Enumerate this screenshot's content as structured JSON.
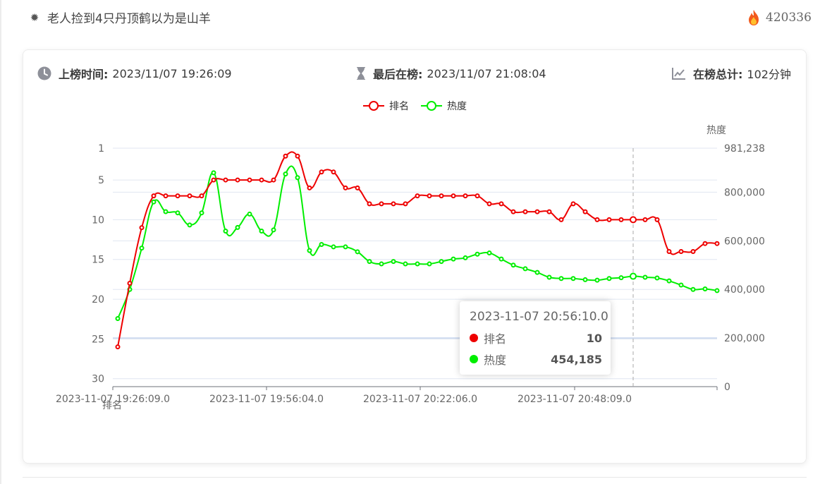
{
  "topic": {
    "title": "老人捡到4只丹顶鹤以为是山羊",
    "heat": "420336",
    "topic_icon": "gear-icon",
    "heat_icon": "fire-icon"
  },
  "stats": {
    "first_label": "上榜时间:",
    "first_value": "2023/11/07 19:26:09",
    "last_label": "最后在榜:",
    "last_value": "2023/11/07 21:08:04",
    "total_label": "在榜总计:",
    "total_value": "102分钟"
  },
  "colors": {
    "rank": "#ee0000",
    "heat": "#00ee00"
  },
  "tooltip": {
    "title": "2023-11-07 20:56:10.0",
    "rows": [
      {
        "name": "排名",
        "value": "10"
      },
      {
        "name": "热度",
        "value": "454,185"
      }
    ]
  },
  "chart_data": {
    "type": "line",
    "legend": [
      "排名",
      "热度"
    ],
    "legend_position": "top-center",
    "x_tick_labels": [
      "2023-11-07 19:26:09.0",
      "2023-11-07 19:56:04.0",
      "2023-11-07 20:22:06.0",
      "2023-11-07 20:48:09.0"
    ],
    "left_axis": {
      "name": "排名",
      "inverse": true,
      "range": [
        1,
        31
      ],
      "ticks": [
        "1",
        "5",
        "10",
        "15",
        "20",
        "25",
        "30"
      ]
    },
    "right_axis": {
      "name": "热度",
      "range": [
        0,
        981238
      ],
      "ticks": [
        "0",
        "200,000",
        "400,000",
        "600,000",
        "800,000",
        "981,238"
      ]
    },
    "series": [
      {
        "name": "排名",
        "axis": "left",
        "values": [
          26,
          18,
          11,
          7,
          7,
          7,
          7,
          7,
          5,
          5,
          5,
          5,
          5,
          5,
          2,
          2,
          6,
          4,
          4,
          6,
          6,
          8,
          8,
          8,
          8,
          7,
          7,
          7,
          7,
          7,
          7,
          8,
          8,
          9,
          9,
          9,
          9,
          10,
          8,
          9,
          10,
          10,
          10,
          10,
          10,
          10,
          14,
          14,
          14,
          13,
          13
        ]
      },
      {
        "name": "热度",
        "axis": "right",
        "values": [
          280000,
          400000,
          570000,
          760000,
          720000,
          715000,
          665000,
          715000,
          880000,
          640000,
          655000,
          710000,
          640000,
          645000,
          875000,
          860000,
          560000,
          585000,
          575000,
          575000,
          555000,
          515000,
          505000,
          515000,
          505000,
          505000,
          505000,
          515000,
          525000,
          530000,
          545000,
          550000,
          525000,
          500000,
          485000,
          470000,
          450000,
          445000,
          445000,
          440000,
          438000,
          445000,
          448000,
          454185,
          450000,
          447000,
          435000,
          418000,
          400000,
          402000,
          395000
        ]
      }
    ],
    "highlight_index": 43
  }
}
